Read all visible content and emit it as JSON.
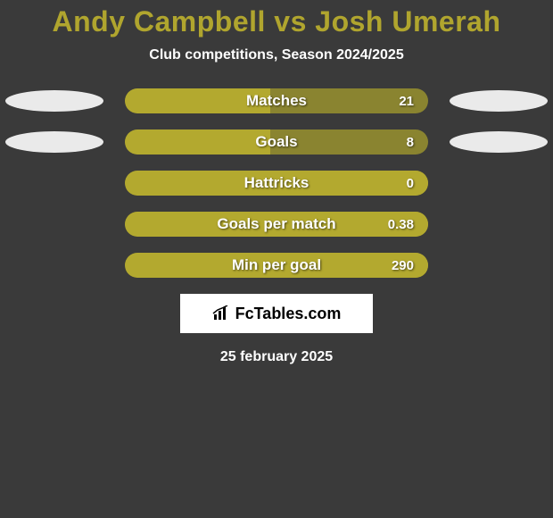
{
  "title": {
    "text": "Andy Campbell vs Josh Umerah",
    "color": "#b0a52e",
    "fontsize": 32
  },
  "subtitle": {
    "text": "Club competitions, Season 2024/2025",
    "color": "#ffffff",
    "fontsize": 16
  },
  "ellipse_color": "#eaeaea",
  "rows": [
    {
      "label": "Matches",
      "value": "21",
      "fill_pct": 48,
      "show_ellipses": true
    },
    {
      "label": "Goals",
      "value": "8",
      "fill_pct": 48,
      "show_ellipses": true
    },
    {
      "label": "Hattricks",
      "value": "0",
      "fill_pct": 100,
      "show_ellipses": false
    },
    {
      "label": "Goals per match",
      "value": "0.38",
      "fill_pct": 100,
      "show_ellipses": false
    },
    {
      "label": "Min per goal",
      "value": "290",
      "fill_pct": 100,
      "show_ellipses": false
    }
  ],
  "bar_style": {
    "track_color": "#8a8430",
    "fill_color": "#b3a92f",
    "label_color": "#ffffff",
    "value_color": "#ffffff",
    "label_fontsize": 17,
    "value_fontsize": 15
  },
  "logo": {
    "brand": "FcTables.com",
    "icon_name": "barchart-icon"
  },
  "date": {
    "text": "25 february 2025",
    "color": "#ffffff",
    "fontsize": 16
  },
  "background_color": "#3a3a3a"
}
